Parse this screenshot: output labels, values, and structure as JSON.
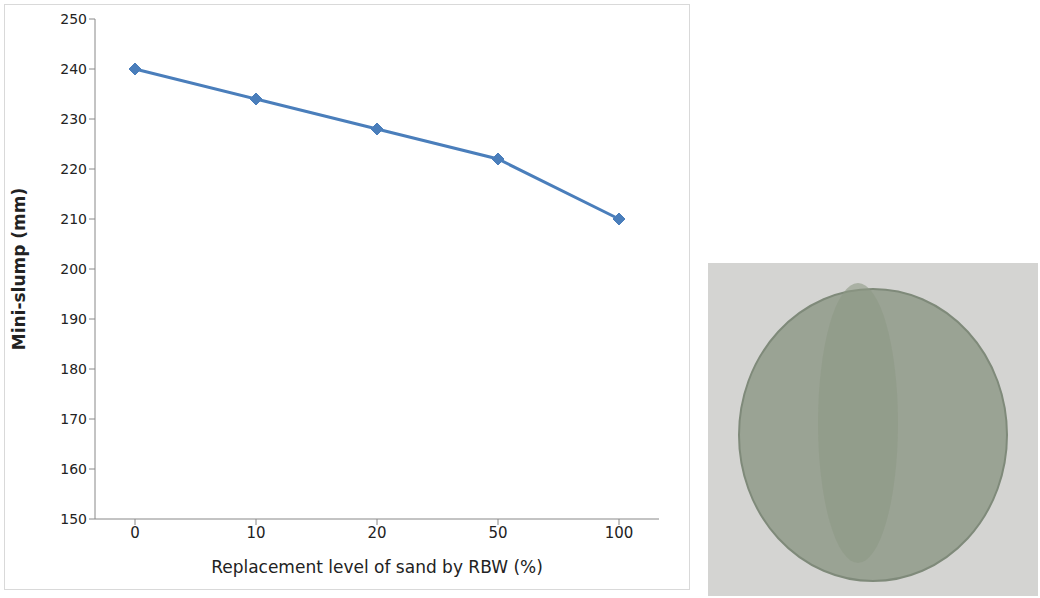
{
  "chart_data": {
    "type": "line",
    "categories": [
      "0",
      "10",
      "20",
      "50",
      "100"
    ],
    "values": [
      240,
      234,
      228,
      222,
      210
    ],
    "color": "#4a7ebb",
    "marker": "diamond",
    "xlabel": "Replacement level of sand by RBW (%)",
    "ylabel": "Mini-slump (mm)",
    "ylim": [
      150,
      250
    ],
    "yticks": [
      150,
      160,
      170,
      180,
      190,
      200,
      210,
      220,
      230,
      240,
      250
    ],
    "grid": false
  }
}
